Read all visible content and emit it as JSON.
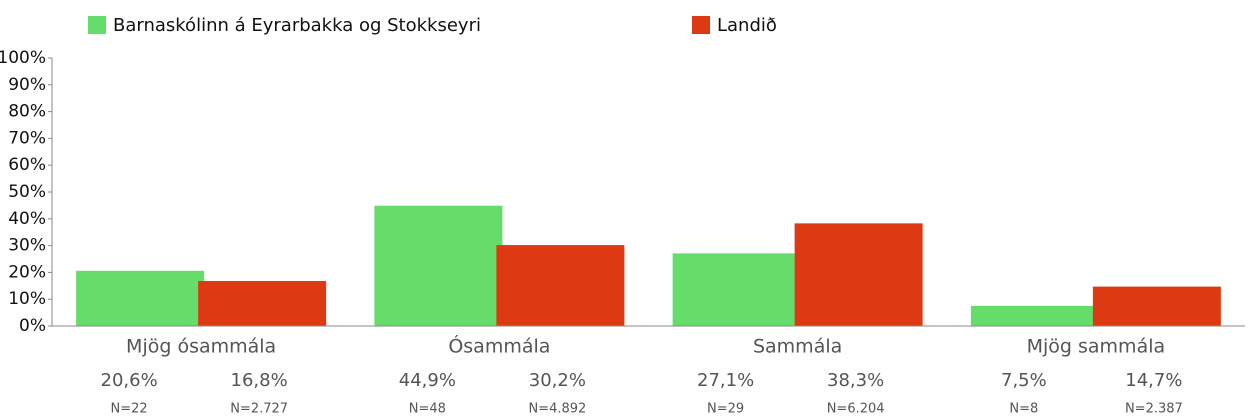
{
  "chart_data": {
    "type": "bar",
    "categories": [
      "Mjög ósammála",
      "Ósammála",
      "Sammála",
      "Mjög sammála"
    ],
    "series": [
      {
        "name": "Barnaskólinn á Eyrarbakka og Stokkseyri",
        "color": "#66dd6a",
        "values": [
          20.6,
          44.9,
          27.1,
          7.5
        ],
        "value_labels": [
          "20,6%",
          "44,9%",
          "27,1%",
          "7,5%"
        ],
        "n_labels": [
          "N=22",
          "N=48",
          "N=29",
          "N=8"
        ]
      },
      {
        "name": "Landið",
        "color": "#dd3a14",
        "values": [
          16.8,
          30.2,
          38.3,
          14.7
        ],
        "value_labels": [
          "16,8%",
          "30,2%",
          "38,3%",
          "14,7%"
        ],
        "n_labels": [
          "N=2.727",
          "N=4.892",
          "N=6.204",
          "N=2.387"
        ]
      }
    ],
    "ylim": [
      0,
      100
    ],
    "yticks": [
      {
        "value": 0,
        "label": "0%"
      },
      {
        "value": 10,
        "label": "10%"
      },
      {
        "value": 20,
        "label": "20%"
      },
      {
        "value": 30,
        "label": "30%"
      },
      {
        "value": 40,
        "label": "40%"
      },
      {
        "value": 50,
        "label": "50%"
      },
      {
        "value": 60,
        "label": "60%"
      },
      {
        "value": 70,
        "label": "70%"
      },
      {
        "value": 80,
        "label": "80%"
      },
      {
        "value": 90,
        "label": "90%"
      },
      {
        "value": 100,
        "label": "100%"
      }
    ],
    "legend": "top"
  }
}
